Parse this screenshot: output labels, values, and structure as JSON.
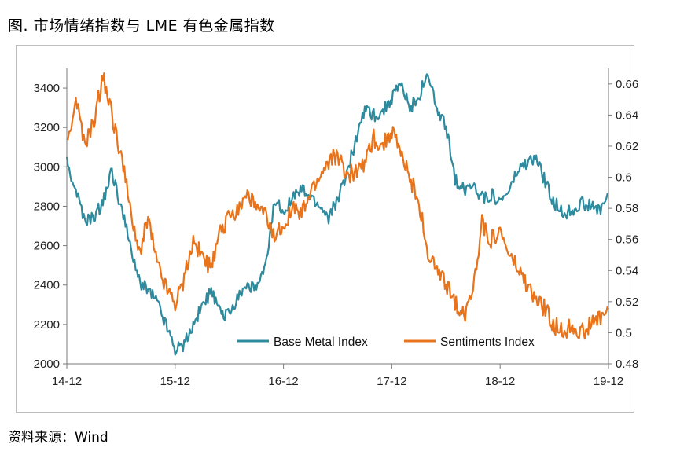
{
  "caption": "图. 市场情绪指数与 LME 有色金属指数",
  "source": "资料来源：Wind",
  "chart_data": {
    "type": "line",
    "title": "图. 市场情绪指数与 LME 有色金属指数",
    "xlabel": "",
    "ylabel": "",
    "x_tick_labels": [
      "14-12",
      "15-12",
      "16-12",
      "17-12",
      "18-12",
      "19-12"
    ],
    "x_range": [
      "2014-12",
      "2019-12"
    ],
    "y_left": {
      "range": [
        2000,
        3500
      ],
      "ticks": [
        2000,
        2200,
        2400,
        2600,
        2800,
        3000,
        3200,
        3400
      ]
    },
    "y_right": {
      "range": [
        0.48,
        0.67
      ],
      "ticks": [
        0.48,
        0.5,
        0.52,
        0.54,
        0.56,
        0.58,
        0.6,
        0.62,
        0.64,
        0.66
      ]
    },
    "grid": false,
    "legend_position": "bottom-center",
    "series": [
      {
        "name": "Base Metal Index",
        "axis": "left",
        "color": "#2e8b9e",
        "x": [
          "2014-12",
          "2015-01",
          "2015-02",
          "2015-03",
          "2015-04",
          "2015-05",
          "2015-06",
          "2015-07",
          "2015-08",
          "2015-09",
          "2015-10",
          "2015-11",
          "2015-12",
          "2016-01",
          "2016-02",
          "2016-03",
          "2016-04",
          "2016-05",
          "2016-06",
          "2016-07",
          "2016-08",
          "2016-09",
          "2016-10",
          "2016-11",
          "2016-12",
          "2017-01",
          "2017-02",
          "2017-03",
          "2017-04",
          "2017-05",
          "2017-06",
          "2017-07",
          "2017-08",
          "2017-09",
          "2017-10",
          "2017-11",
          "2017-12",
          "2018-01",
          "2018-02",
          "2018-03",
          "2018-04",
          "2018-05",
          "2018-06",
          "2018-07",
          "2018-08",
          "2018-09",
          "2018-10",
          "2018-11",
          "2018-12",
          "2019-01",
          "2019-02",
          "2019-03",
          "2019-04",
          "2019-05",
          "2019-06",
          "2019-07",
          "2019-08",
          "2019-09",
          "2019-10",
          "2019-11",
          "2019-12"
        ],
        "values": [
          3020,
          2880,
          2720,
          2740,
          2820,
          2980,
          2800,
          2600,
          2420,
          2380,
          2320,
          2200,
          2080,
          2100,
          2200,
          2300,
          2360,
          2260,
          2250,
          2350,
          2400,
          2380,
          2480,
          2820,
          2780,
          2840,
          2880,
          2840,
          2800,
          2740,
          2840,
          2960,
          3140,
          3300,
          3260,
          3280,
          3350,
          3420,
          3300,
          3360,
          3480,
          3280,
          3200,
          2940,
          2880,
          2920,
          2840,
          2860,
          2820,
          2880,
          2980,
          3020,
          3040,
          2920,
          2820,
          2760,
          2780,
          2820,
          2800,
          2780,
          2860
        ]
      },
      {
        "name": "Sentiments Index",
        "axis": "right",
        "color": "#e8731a",
        "x": [
          "2014-12",
          "2015-01",
          "2015-02",
          "2015-03",
          "2015-04",
          "2015-05",
          "2015-06",
          "2015-07",
          "2015-08",
          "2015-09",
          "2015-10",
          "2015-11",
          "2015-12",
          "2016-01",
          "2016-02",
          "2016-03",
          "2016-04",
          "2016-05",
          "2016-06",
          "2016-07",
          "2016-08",
          "2016-09",
          "2016-10",
          "2016-11",
          "2016-12",
          "2017-01",
          "2017-02",
          "2017-03",
          "2017-04",
          "2017-05",
          "2017-06",
          "2017-07",
          "2017-08",
          "2017-09",
          "2017-10",
          "2017-11",
          "2017-12",
          "2018-01",
          "2018-02",
          "2018-03",
          "2018-04",
          "2018-05",
          "2018-06",
          "2018-07",
          "2018-08",
          "2018-09",
          "2018-10",
          "2018-11",
          "2018-12",
          "2019-01",
          "2019-02",
          "2019-03",
          "2019-04",
          "2019-05",
          "2019-06",
          "2019-07",
          "2019-08",
          "2019-09",
          "2019-10",
          "2019-11",
          "2019-12"
        ],
        "values": [
          0.62,
          0.65,
          0.62,
          0.635,
          0.665,
          0.64,
          0.615,
          0.58,
          0.55,
          0.575,
          0.545,
          0.53,
          0.52,
          0.535,
          0.56,
          0.55,
          0.54,
          0.565,
          0.575,
          0.58,
          0.59,
          0.58,
          0.575,
          0.56,
          0.57,
          0.58,
          0.575,
          0.59,
          0.6,
          0.61,
          0.615,
          0.6,
          0.605,
          0.61,
          0.625,
          0.62,
          0.63,
          0.615,
          0.6,
          0.585,
          0.55,
          0.54,
          0.53,
          0.52,
          0.51,
          0.53,
          0.57,
          0.56,
          0.565,
          0.55,
          0.54,
          0.53,
          0.52,
          0.515,
          0.505,
          0.5,
          0.505,
          0.5,
          0.505,
          0.51,
          0.515
        ]
      }
    ]
  }
}
